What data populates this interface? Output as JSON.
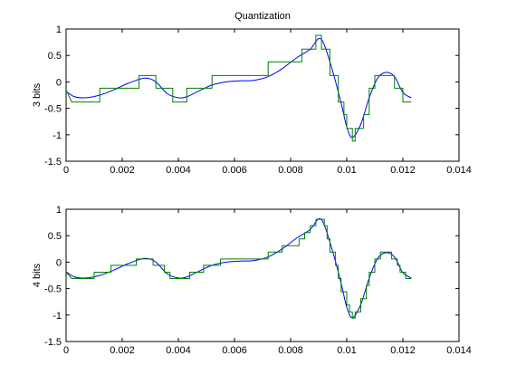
{
  "chart_data": [
    {
      "type": "line",
      "title": "Quantization",
      "xlabel": "",
      "ylabel": "3 bits",
      "xlim": [
        0,
        0.014
      ],
      "ylim": [
        -1.5,
        1
      ],
      "x_ticks": [
        "0",
        "0.002",
        "0.004",
        "0.006",
        "0.008",
        "0.01",
        "0.012",
        "0.014"
      ],
      "y_ticks": [
        "-1.5",
        "-1",
        "-0.5",
        "0",
        "0.5",
        "1"
      ],
      "grid": false,
      "series": [
        {
          "color": "#0000ff",
          "style": "smooth",
          "points": [
            [
              0,
              -0.18
            ],
            [
              0.0003,
              -0.28
            ],
            [
              0.0007,
              -0.3
            ],
            [
              0.0012,
              -0.25
            ],
            [
              0.0017,
              -0.15
            ],
            [
              0.0022,
              -0.03
            ],
            [
              0.0028,
              0.07
            ],
            [
              0.0032,
              0.0
            ],
            [
              0.0036,
              -0.22
            ],
            [
              0.004,
              -0.3
            ],
            [
              0.0043,
              -0.28
            ],
            [
              0.0047,
              -0.18
            ],
            [
              0.0052,
              -0.06
            ],
            [
              0.0057,
              0.0
            ],
            [
              0.0062,
              0.02
            ],
            [
              0.0067,
              0.03
            ],
            [
              0.0072,
              0.1
            ],
            [
              0.0077,
              0.25
            ],
            [
              0.0082,
              0.45
            ],
            [
              0.0087,
              0.62
            ],
            [
              0.009,
              0.82
            ],
            [
              0.0092,
              0.7
            ],
            [
              0.0095,
              0.2
            ],
            [
              0.0098,
              -0.4
            ],
            [
              0.01,
              -0.85
            ],
            [
              0.0102,
              -1.05
            ],
            [
              0.0105,
              -0.8
            ],
            [
              0.0108,
              -0.3
            ],
            [
              0.0111,
              0.07
            ],
            [
              0.0114,
              0.18
            ],
            [
              0.0117,
              0.1
            ],
            [
              0.012,
              -0.2
            ],
            [
              0.0123,
              -0.3
            ]
          ]
        },
        {
          "color": "#008000",
          "style": "step",
          "points": [
            [
              0,
              -0.15
            ],
            [
              0.0002,
              -0.38
            ],
            [
              0.0012,
              -0.38
            ],
            [
              0.0012,
              -0.12
            ],
            [
              0.0026,
              -0.12
            ],
            [
              0.0026,
              0.12
            ],
            [
              0.0032,
              0.12
            ],
            [
              0.0032,
              -0.12
            ],
            [
              0.0038,
              -0.12
            ],
            [
              0.0038,
              -0.38
            ],
            [
              0.0043,
              -0.38
            ],
            [
              0.0043,
              -0.12
            ],
            [
              0.0052,
              -0.12
            ],
            [
              0.0052,
              0.12
            ],
            [
              0.0072,
              0.12
            ],
            [
              0.0072,
              0.38
            ],
            [
              0.0084,
              0.38
            ],
            [
              0.0084,
              0.62
            ],
            [
              0.0089,
              0.62
            ],
            [
              0.0089,
              0.88
            ],
            [
              0.0091,
              0.88
            ],
            [
              0.0091,
              0.62
            ],
            [
              0.0094,
              0.62
            ],
            [
              0.0094,
              0.12
            ],
            [
              0.0097,
              0.12
            ],
            [
              0.0097,
              -0.38
            ],
            [
              0.0099,
              -0.38
            ],
            [
              0.0099,
              -0.62
            ],
            [
              0.01,
              -0.62
            ],
            [
              0.01,
              -0.88
            ],
            [
              0.0102,
              -0.88
            ],
            [
              0.0102,
              -1.12
            ],
            [
              0.0103,
              -1.12
            ],
            [
              0.0103,
              -0.88
            ],
            [
              0.0106,
              -0.88
            ],
            [
              0.0106,
              -0.62
            ],
            [
              0.0108,
              -0.62
            ],
            [
              0.0108,
              -0.12
            ],
            [
              0.011,
              -0.12
            ],
            [
              0.011,
              0.12
            ],
            [
              0.0117,
              0.12
            ],
            [
              0.0117,
              -0.12
            ],
            [
              0.012,
              -0.12
            ],
            [
              0.012,
              -0.38
            ],
            [
              0.0123,
              -0.38
            ]
          ]
        }
      ]
    },
    {
      "type": "line",
      "title": "",
      "xlabel": "",
      "ylabel": "4 bits",
      "xlim": [
        0,
        0.014
      ],
      "ylim": [
        -1.5,
        1
      ],
      "x_ticks": [
        "0",
        "0.002",
        "0.004",
        "0.006",
        "0.008",
        "0.01",
        "0.012",
        "0.014"
      ],
      "y_ticks": [
        "-1.5",
        "-1",
        "-0.5",
        "0",
        "0.5",
        "1"
      ],
      "grid": false,
      "series": [
        {
          "color": "#0000ff",
          "style": "smooth",
          "points": [
            [
              0,
              -0.18
            ],
            [
              0.0003,
              -0.28
            ],
            [
              0.0007,
              -0.3
            ],
            [
              0.0012,
              -0.25
            ],
            [
              0.0017,
              -0.15
            ],
            [
              0.0022,
              -0.03
            ],
            [
              0.0028,
              0.07
            ],
            [
              0.0032,
              0.0
            ],
            [
              0.0036,
              -0.22
            ],
            [
              0.004,
              -0.3
            ],
            [
              0.0043,
              -0.28
            ],
            [
              0.0047,
              -0.18
            ],
            [
              0.0052,
              -0.06
            ],
            [
              0.0057,
              0.0
            ],
            [
              0.0062,
              0.02
            ],
            [
              0.0067,
              0.03
            ],
            [
              0.0072,
              0.1
            ],
            [
              0.0077,
              0.25
            ],
            [
              0.0082,
              0.45
            ],
            [
              0.0087,
              0.62
            ],
            [
              0.009,
              0.82
            ],
            [
              0.0092,
              0.7
            ],
            [
              0.0095,
              0.2
            ],
            [
              0.0098,
              -0.4
            ],
            [
              0.01,
              -0.85
            ],
            [
              0.0102,
              -1.05
            ],
            [
              0.0105,
              -0.8
            ],
            [
              0.0108,
              -0.3
            ],
            [
              0.0111,
              0.07
            ],
            [
              0.0114,
              0.18
            ],
            [
              0.0117,
              0.1
            ],
            [
              0.012,
              -0.2
            ],
            [
              0.0123,
              -0.3
            ]
          ]
        },
        {
          "color": "#008000",
          "style": "step",
          "points": [
            [
              0,
              -0.19
            ],
            [
              0.0002,
              -0.31
            ],
            [
              0.001,
              -0.31
            ],
            [
              0.001,
              -0.19
            ],
            [
              0.0016,
              -0.19
            ],
            [
              0.0016,
              -0.06
            ],
            [
              0.0025,
              -0.06
            ],
            [
              0.0025,
              0.06
            ],
            [
              0.0031,
              0.06
            ],
            [
              0.0031,
              -0.06
            ],
            [
              0.0035,
              -0.06
            ],
            [
              0.0035,
              -0.19
            ],
            [
              0.0037,
              -0.19
            ],
            [
              0.0037,
              -0.31
            ],
            [
              0.0044,
              -0.31
            ],
            [
              0.0044,
              -0.19
            ],
            [
              0.0049,
              -0.19
            ],
            [
              0.0049,
              -0.06
            ],
            [
              0.0055,
              -0.06
            ],
            [
              0.0055,
              0.06
            ],
            [
              0.0072,
              0.06
            ],
            [
              0.0072,
              0.19
            ],
            [
              0.0077,
              0.19
            ],
            [
              0.0077,
              0.31
            ],
            [
              0.0083,
              0.31
            ],
            [
              0.0083,
              0.44
            ],
            [
              0.0085,
              0.44
            ],
            [
              0.0085,
              0.56
            ],
            [
              0.0087,
              0.56
            ],
            [
              0.0087,
              0.69
            ],
            [
              0.0089,
              0.69
            ],
            [
              0.0089,
              0.81
            ],
            [
              0.0092,
              0.81
            ],
            [
              0.0092,
              0.69
            ],
            [
              0.0093,
              0.69
            ],
            [
              0.0093,
              0.44
            ],
            [
              0.0094,
              0.44
            ],
            [
              0.0094,
              0.19
            ],
            [
              0.0096,
              0.19
            ],
            [
              0.0096,
              -0.06
            ],
            [
              0.0097,
              -0.06
            ],
            [
              0.0097,
              -0.31
            ],
            [
              0.0098,
              -0.31
            ],
            [
              0.0098,
              -0.56
            ],
            [
              0.01,
              -0.56
            ],
            [
              0.01,
              -0.81
            ],
            [
              0.0101,
              -0.81
            ],
            [
              0.0101,
              -0.94
            ],
            [
              0.0102,
              -0.94
            ],
            [
              0.0102,
              -1.06
            ],
            [
              0.0103,
              -1.06
            ],
            [
              0.0103,
              -0.94
            ],
            [
              0.0105,
              -0.94
            ],
            [
              0.0105,
              -0.69
            ],
            [
              0.0107,
              -0.69
            ],
            [
              0.0107,
              -0.44
            ],
            [
              0.0108,
              -0.44
            ],
            [
              0.0108,
              -0.19
            ],
            [
              0.011,
              -0.19
            ],
            [
              0.011,
              0.06
            ],
            [
              0.0112,
              0.06
            ],
            [
              0.0112,
              0.19
            ],
            [
              0.0116,
              0.19
            ],
            [
              0.0116,
              0.06
            ],
            [
              0.0118,
              0.06
            ],
            [
              0.0118,
              -0.06
            ],
            [
              0.0119,
              -0.06
            ],
            [
              0.0119,
              -0.19
            ],
            [
              0.0121,
              -0.19
            ],
            [
              0.0121,
              -0.31
            ],
            [
              0.0123,
              -0.31
            ]
          ]
        }
      ]
    }
  ]
}
